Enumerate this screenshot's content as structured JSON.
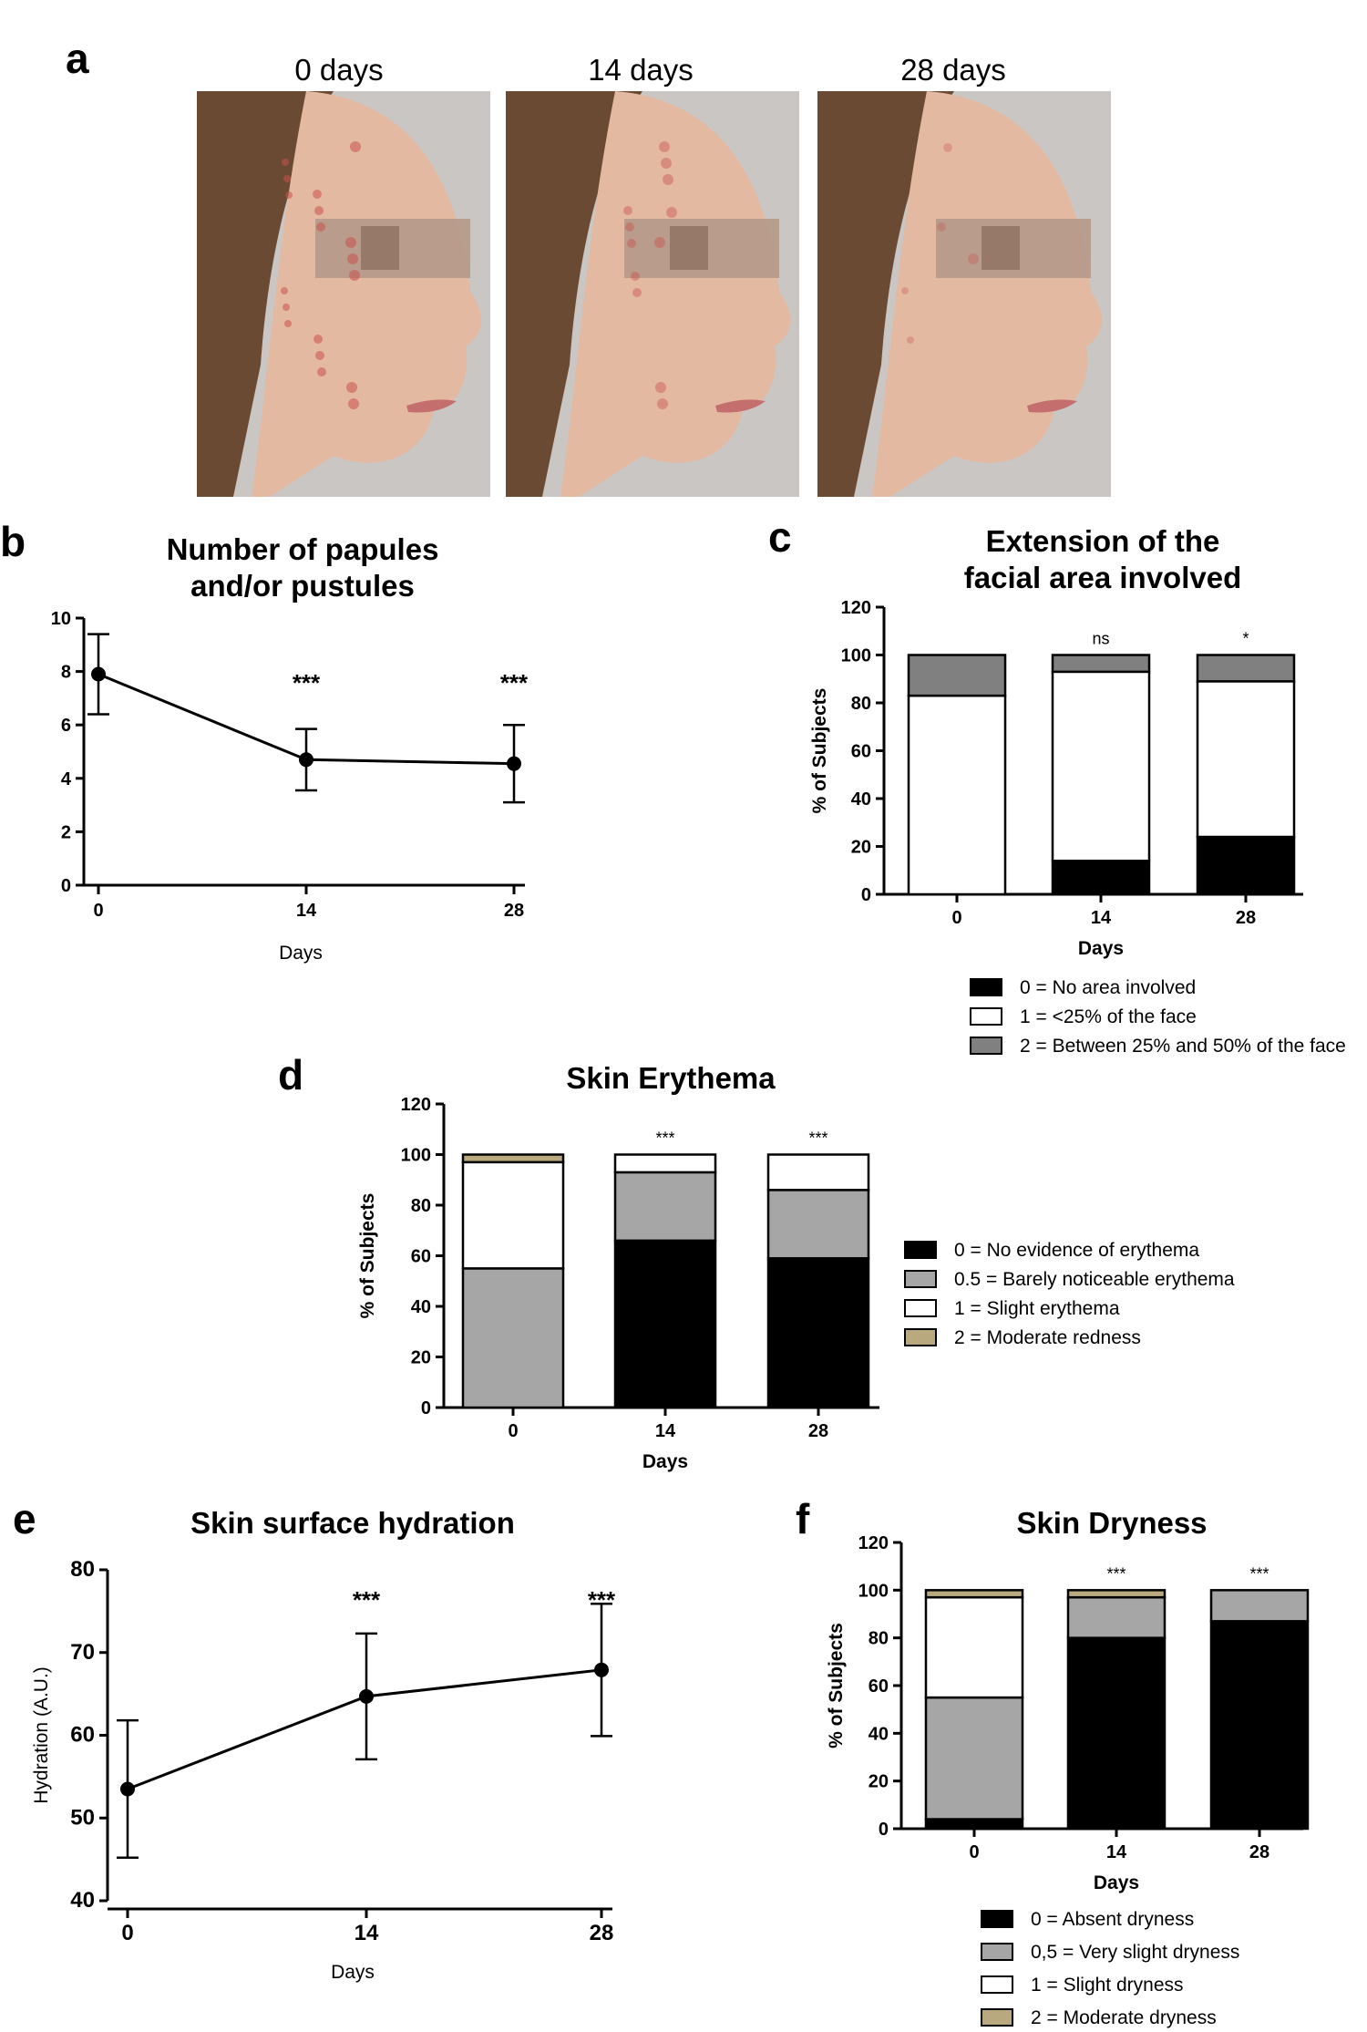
{
  "panels": {
    "a": {
      "letter": "a",
      "photo_labels": [
        "0 days",
        "14 days",
        "28 days"
      ],
      "skin_color": "#e4b9a2",
      "spot_color": "#c8524c"
    },
    "b": {
      "letter": "b"
    },
    "c": {
      "letter": "c"
    },
    "d": {
      "letter": "d"
    },
    "e": {
      "letter": "e"
    },
    "f": {
      "letter": "f"
    }
  },
  "chart_data": [
    {
      "id": "b",
      "type": "line",
      "title": [
        "Number of papules",
        "and/or pustules"
      ],
      "xlabel": "Days",
      "ylabel": "",
      "x": [
        0,
        14,
        28
      ],
      "x_ticks": [
        "0",
        "14",
        "28"
      ],
      "y_ticks": [
        0,
        2,
        4,
        6,
        8,
        10
      ],
      "ylim": [
        0,
        10
      ],
      "values": [
        7.9,
        4.7,
        4.55
      ],
      "error": [
        1.5,
        1.15,
        1.45
      ],
      "significance": [
        "",
        "***",
        "***"
      ],
      "grid": false
    },
    {
      "id": "c",
      "type": "bar",
      "stacked": true,
      "title": [
        "Extension of the",
        "facial area involved"
      ],
      "xlabel": "Days",
      "ylabel": "% of Subjects",
      "categories": [
        "0",
        "14",
        "28"
      ],
      "y_ticks": [
        0,
        20,
        40,
        60,
        80,
        100,
        120
      ],
      "ylim": [
        0,
        120
      ],
      "significance": [
        "",
        "ns",
        "*"
      ],
      "series": [
        {
          "name": "0 = No area involved",
          "color": "#000000",
          "values": [
            0,
            14,
            24
          ]
        },
        {
          "name": "1 = <25% of the face",
          "color": "#ffffff",
          "values": [
            83,
            79,
            65
          ]
        },
        {
          "name": "2 = Between 25% and 50% of the face",
          "color": "#808080",
          "values": [
            17,
            7,
            11
          ]
        }
      ],
      "legend_position": "bottom-right"
    },
    {
      "id": "d",
      "type": "bar",
      "stacked": true,
      "title": [
        "Skin Erythema"
      ],
      "xlabel": "Days",
      "ylabel": "% of Subjects",
      "categories": [
        "0",
        "14",
        "28"
      ],
      "y_ticks": [
        0,
        20,
        40,
        60,
        80,
        100,
        120
      ],
      "ylim": [
        0,
        120
      ],
      "significance": [
        "",
        "***",
        "***"
      ],
      "series": [
        {
          "name": "0 = No evidence of erythema",
          "color": "#000000",
          "values": [
            0,
            66,
            59
          ]
        },
        {
          "name": "0.5 = Barely noticeable erythema",
          "color": "#a6a6a6",
          "values": [
            55,
            27,
            27
          ]
        },
        {
          "name": "1 = Slight erythema",
          "color": "#ffffff",
          "values": [
            42,
            7,
            14
          ]
        },
        {
          "name": "2 = Moderate redness",
          "color": "#b8a97e",
          "values": [
            3,
            0,
            0
          ]
        }
      ],
      "legend_position": "right"
    },
    {
      "id": "e",
      "type": "line",
      "title": [
        "Skin surface hydration"
      ],
      "xlabel": "Days",
      "ylabel": "Hydration (A.U.)",
      "x": [
        0,
        14,
        28
      ],
      "x_ticks": [
        "0",
        "14",
        "28"
      ],
      "y_ticks": [
        40,
        50,
        60,
        70,
        80
      ],
      "ylim": [
        40,
        80
      ],
      "values": [
        53.5,
        64.7,
        67.9
      ],
      "error": [
        8.3,
        7.6,
        8.0
      ],
      "significance": [
        "",
        "***",
        "***"
      ],
      "grid": false
    },
    {
      "id": "f",
      "type": "bar",
      "stacked": true,
      "title": [
        "Skin Dryness"
      ],
      "xlabel": "Days",
      "ylabel": "% of Subjects",
      "categories": [
        "0",
        "14",
        "28"
      ],
      "y_ticks": [
        0,
        20,
        40,
        60,
        80,
        100,
        120
      ],
      "ylim": [
        0,
        120
      ],
      "significance": [
        "",
        "***",
        "***"
      ],
      "series": [
        {
          "name": "0 = Absent dryness",
          "color": "#000000",
          "values": [
            4,
            80,
            87
          ]
        },
        {
          "name": "0,5 = Very slight dryness",
          "color": "#a6a6a6",
          "values": [
            51,
            17,
            13
          ]
        },
        {
          "name": "1 = Slight dryness",
          "color": "#ffffff",
          "values": [
            42,
            0,
            0
          ]
        },
        {
          "name": "2 = Moderate dryness",
          "color": "#b8a97e",
          "values": [
            3,
            3,
            0
          ]
        }
      ],
      "legend_position": "bottom"
    }
  ]
}
